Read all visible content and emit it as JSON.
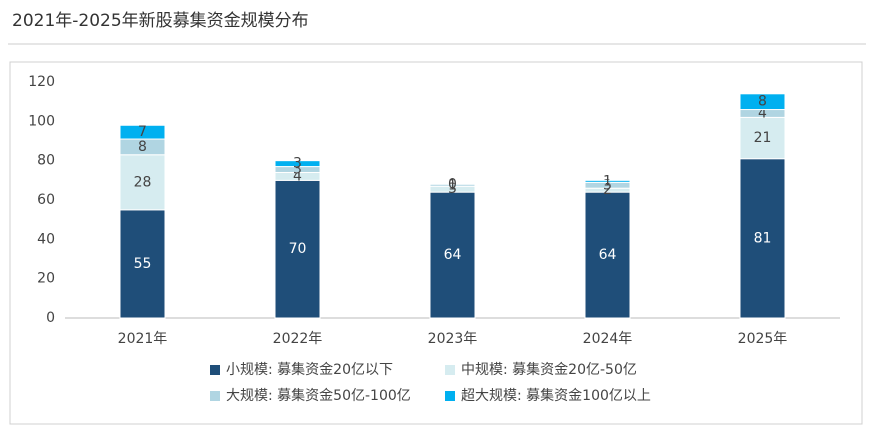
{
  "chart_data": {
    "type": "stacked-bar",
    "title": "2021年-2025年新股募集资金规模分布",
    "categories": [
      "2021年",
      "2022年",
      "2023年",
      "2024年",
      "2025年"
    ],
    "series": [
      {
        "name": "小规模: 募集资金20亿以下",
        "color": "#1f4e79",
        "values": [
          55,
          70,
          64,
          64,
          81
        ]
      },
      {
        "name": "中规模: 募集资金20亿-50亿",
        "color": "#d6ecf0",
        "values": [
          28,
          4,
          3,
          2,
          21
        ]
      },
      {
        "name": "大规模: 募集资金50亿-100亿",
        "color": "#b0d5e2",
        "values": [
          8,
          3,
          1,
          3,
          4
        ]
      },
      {
        "name": "超大规模: 募集资金100亿以上",
        "color": "#00b0f0",
        "values": [
          7,
          3,
          0,
          1,
          8
        ]
      }
    ],
    "ylim": [
      0,
      120
    ],
    "yticks": [
      0,
      20,
      40,
      60,
      80,
      100,
      120
    ]
  }
}
